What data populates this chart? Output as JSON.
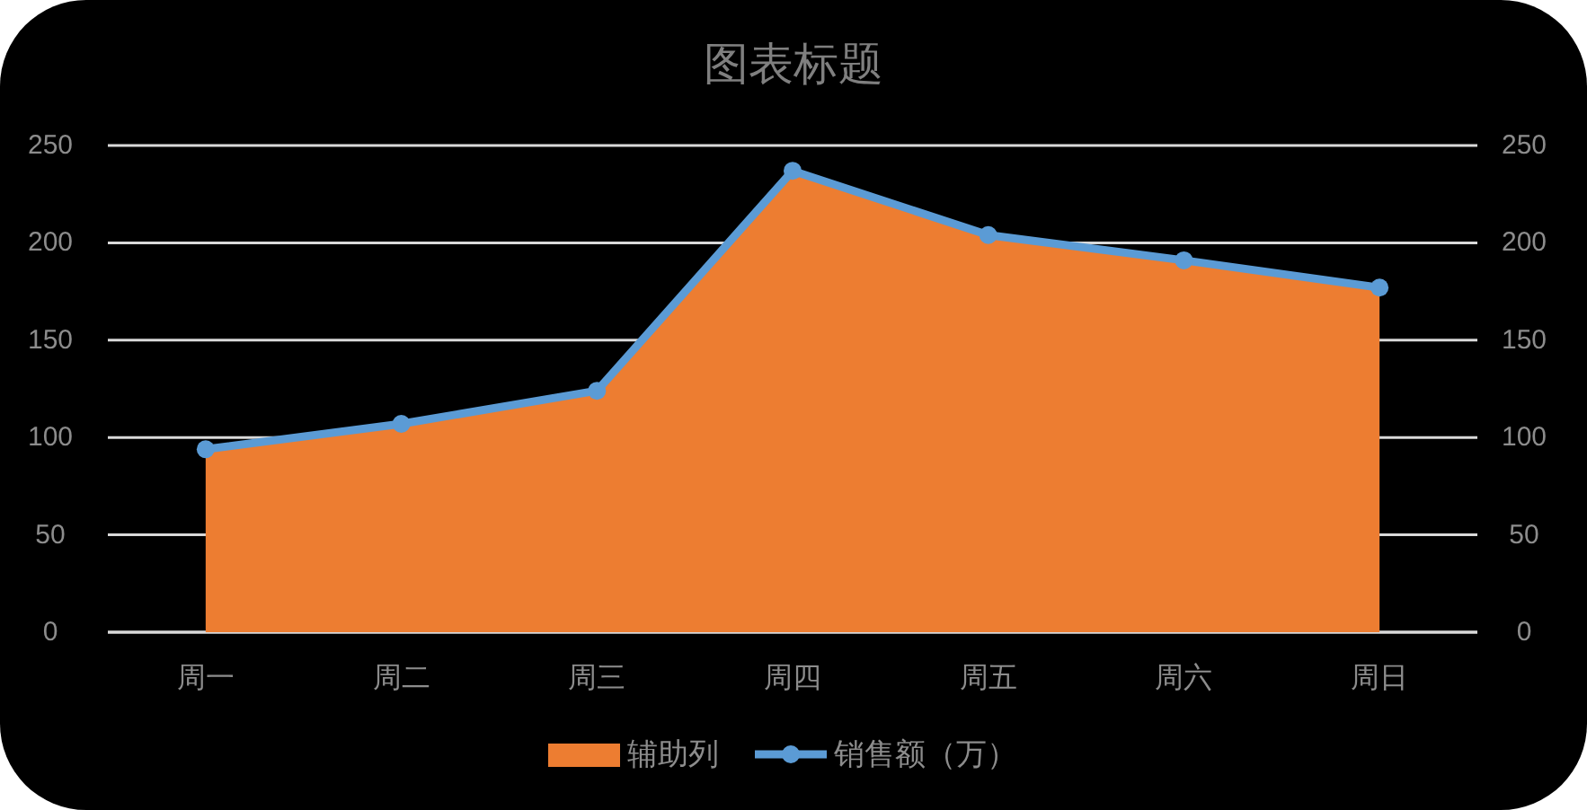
{
  "chart_data": {
    "type": "area",
    "title": "图表标题",
    "categories": [
      "周一",
      "周二",
      "周三",
      "周四",
      "周五",
      "周六",
      "周日"
    ],
    "series": [
      {
        "name": "辅助列",
        "color": "#ed7d31",
        "values": [
          94,
          107,
          124,
          237,
          204,
          191,
          177
        ]
      },
      {
        "name": "销售额（万）",
        "type": "line",
        "color": "#5b9bd5",
        "marker": "circle",
        "values": [
          94,
          107,
          124,
          237,
          204,
          191,
          177
        ]
      }
    ],
    "ylim": [
      0,
      250
    ],
    "yticks": [
      0,
      50,
      100,
      150,
      200,
      250
    ],
    "y2lim": [
      0,
      250
    ],
    "y2ticks": [
      0,
      50,
      100,
      150,
      200,
      250
    ],
    "grid": "y",
    "legend": "bottom"
  }
}
